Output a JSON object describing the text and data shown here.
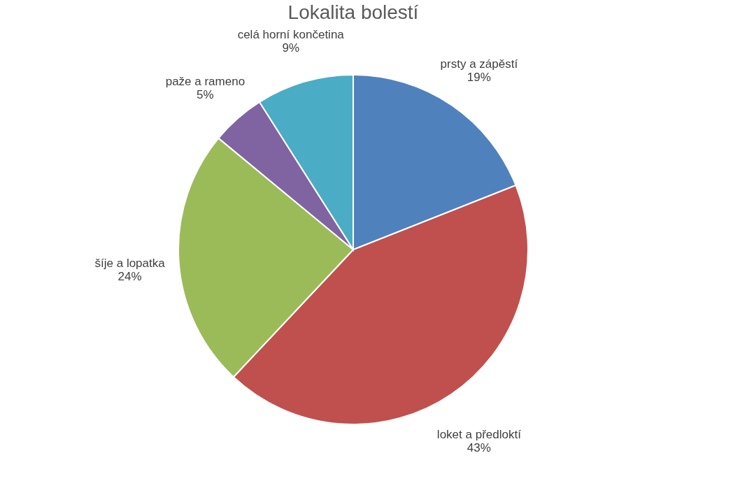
{
  "chart_data": {
    "type": "pie",
    "title": "Lokalita bolestí",
    "categories": [
      "prsty a zápěstí",
      "loket a předloktí",
      "šíje a lopatka",
      "paže a rameno",
      "celá horní končetina"
    ],
    "values": [
      19,
      43,
      24,
      5,
      9
    ],
    "colors": [
      "#4f81bd",
      "#c0504d",
      "#9bbb59",
      "#8064a2",
      "#4bacc6"
    ],
    "value_labels": [
      "19%",
      "43%",
      "24%",
      "5%",
      "9%"
    ]
  }
}
